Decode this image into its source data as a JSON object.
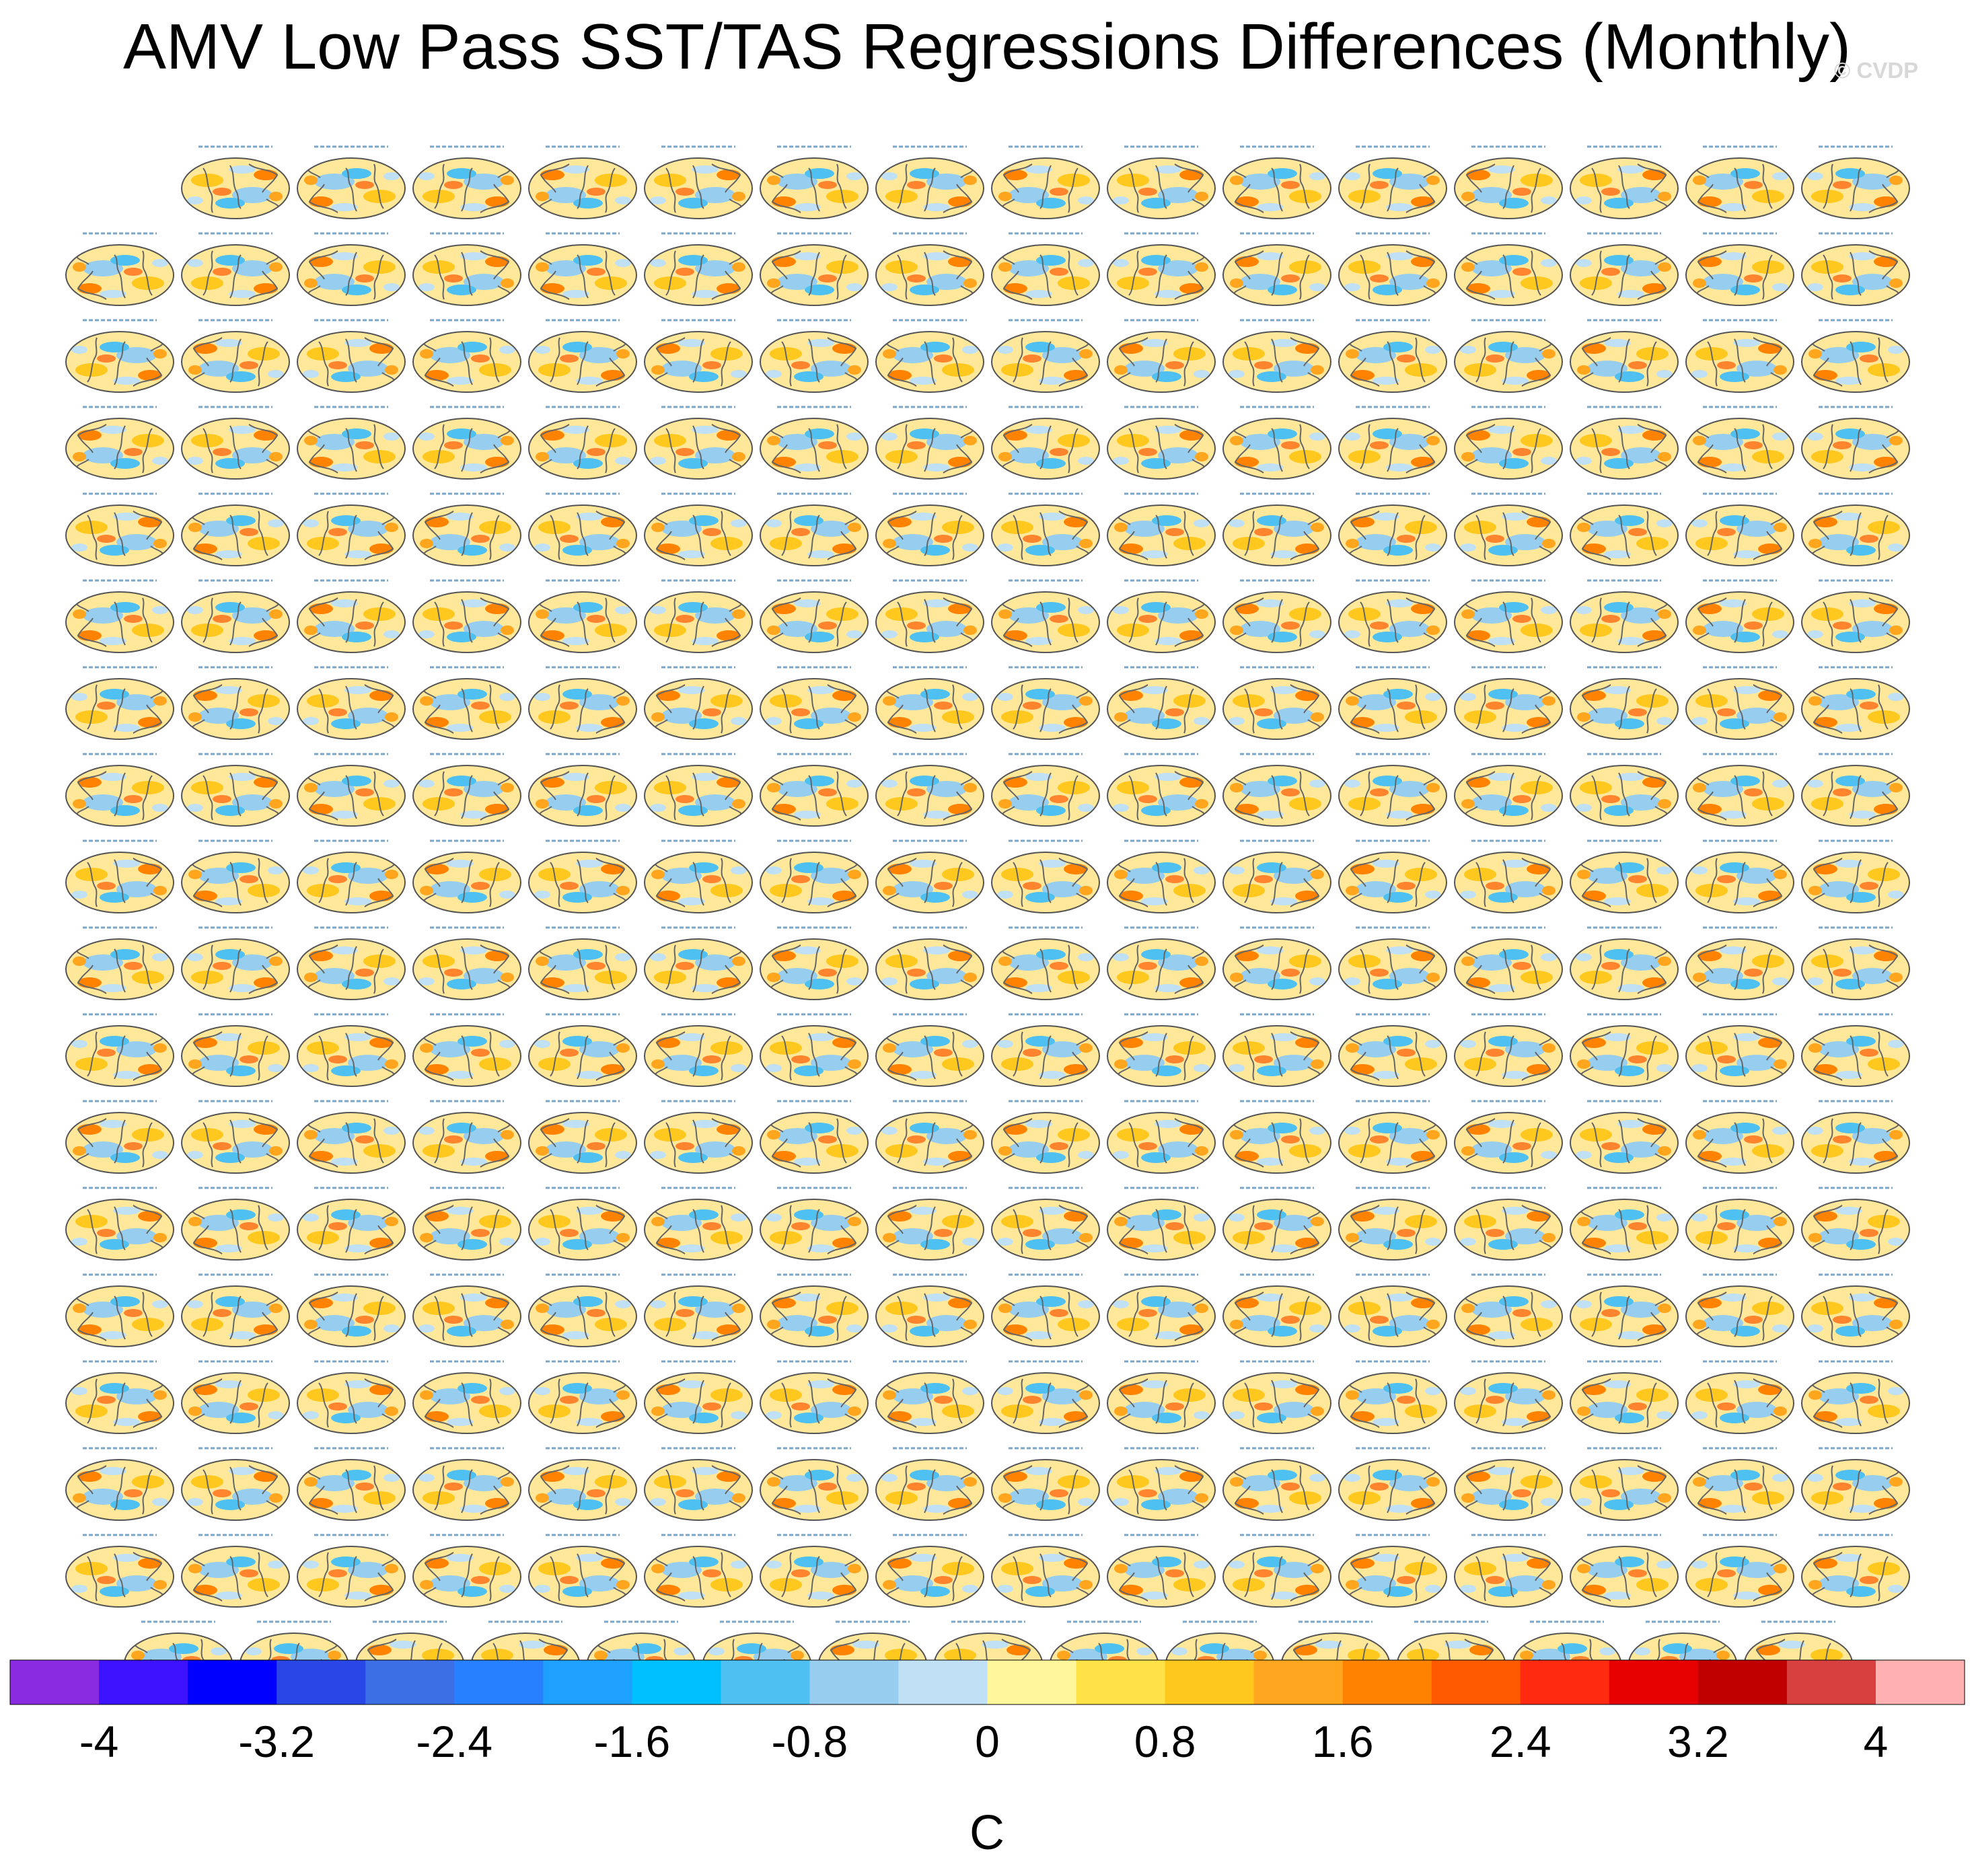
{
  "chart_data": {
    "type": "heatmap",
    "title": "AMV Low Pass SST/TAS Regressions Differences (Monthly)",
    "credit": "© CVDP",
    "panel_grid": {
      "rows": 18,
      "row_counts": [
        15,
        16,
        16,
        16,
        16,
        16,
        16,
        16,
        16,
        16,
        16,
        16,
        16,
        16,
        16,
        16,
        16,
        15
      ],
      "first_panel_label": "HadISST/GISTEMP ERSST v5/BEST",
      "panel_label_pattern": "<model run> - ERSST v5"
    },
    "colorbar": {
      "label": "C",
      "colors": [
        "#8a2be2",
        "#3d12ff",
        "#0000ff",
        "#2847e6",
        "#3c6fe6",
        "#2680ff",
        "#1ea0ff",
        "#00bfff",
        "#4ec0f2",
        "#97cdee",
        "#bfe0f5",
        "#fff79a",
        "#ffe246",
        "#ffc81e",
        "#ffa51e",
        "#ff8200",
        "#ff5a00",
        "#ff2a10",
        "#e60000",
        "#c00000",
        "#d8403f",
        "#ffb0b0"
      ],
      "ticks": [
        "-4",
        "-3.2",
        "-2.4",
        "-1.6",
        "-0.8",
        "0",
        "0.8",
        "1.6",
        "2.4",
        "3.2",
        "4"
      ],
      "range": [
        -4.4,
        4.4
      ]
    }
  }
}
